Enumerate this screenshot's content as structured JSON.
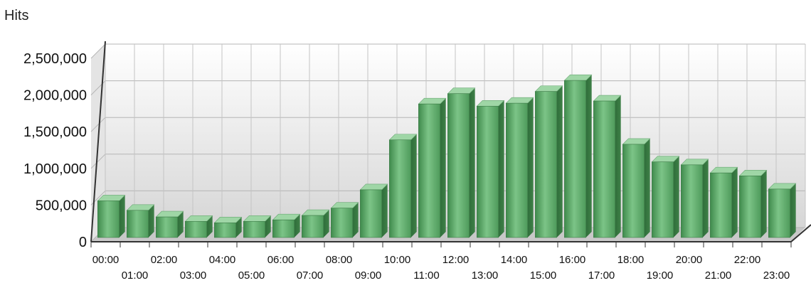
{
  "chart_data": {
    "type": "bar",
    "title": "",
    "xlabel": "",
    "ylabel": "Hits",
    "ylim": [
      0,
      2500000
    ],
    "y_ticks": [
      0,
      500000,
      1000000,
      1500000,
      2000000,
      2500000
    ],
    "y_tick_labels": [
      "0",
      "500,000",
      "1,000,000",
      "1,500,000",
      "2,000,000",
      "2,500,000"
    ],
    "grid": true,
    "style": "3d",
    "bar_color": "#5ea86a",
    "categories": [
      "00:00",
      "01:00",
      "02:00",
      "03:00",
      "04:00",
      "05:00",
      "06:00",
      "07:00",
      "08:00",
      "09:00",
      "10:00",
      "11:00",
      "12:00",
      "13:00",
      "14:00",
      "15:00",
      "16:00",
      "17:00",
      "18:00",
      "19:00",
      "20:00",
      "21:00",
      "22:00",
      "23:00"
    ],
    "values": [
      500000,
      370000,
      280000,
      220000,
      200000,
      220000,
      240000,
      300000,
      400000,
      650000,
      1330000,
      1820000,
      1960000,
      1790000,
      1830000,
      1990000,
      2140000,
      1860000,
      1270000,
      1030000,
      990000,
      880000,
      840000,
      660000
    ]
  }
}
